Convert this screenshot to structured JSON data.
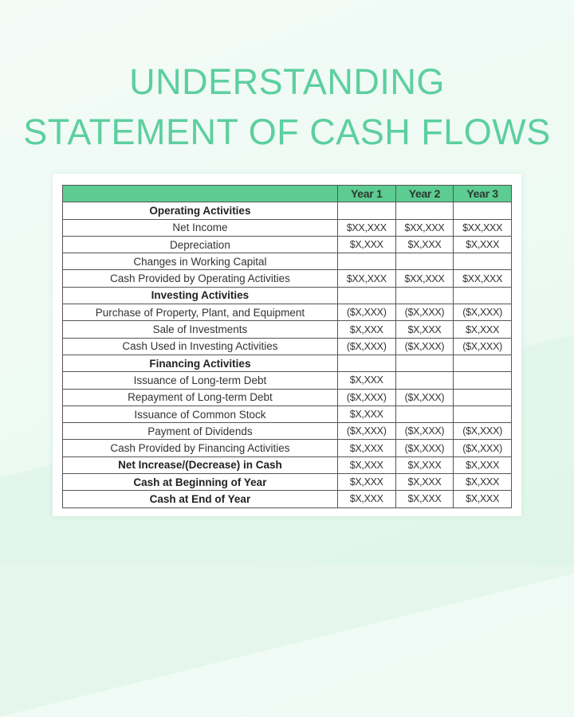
{
  "title": {
    "line1": "UNDERSTANDING",
    "line2": "STATEMENT OF CASH FLOWS"
  },
  "colors": {
    "accent": "#5dcf9f",
    "header_fill": "#5ccc92"
  },
  "table": {
    "headers": [
      "",
      "Year 1",
      "Year 2",
      "Year 3"
    ],
    "rows": [
      {
        "label": "Operating Activities",
        "bold": true,
        "values": [
          "",
          "",
          ""
        ]
      },
      {
        "label": "Net Income",
        "bold": false,
        "values": [
          "$XX,XXX",
          "$XX,XXX",
          "$XX,XXX"
        ]
      },
      {
        "label": "Depreciation",
        "bold": false,
        "values": [
          "$X,XXX",
          "$X,XXX",
          "$X,XXX"
        ]
      },
      {
        "label": "Changes in Working Capital",
        "bold": false,
        "values": [
          "",
          "",
          ""
        ]
      },
      {
        "label": "Cash Provided by Operating Activities",
        "bold": false,
        "values": [
          "$XX,XXX",
          "$XX,XXX",
          "$XX,XXX"
        ]
      },
      {
        "label": "Investing Activities",
        "bold": true,
        "values": [
          "",
          "",
          ""
        ]
      },
      {
        "label": "Purchase of Property, Plant, and Equipment",
        "bold": false,
        "values": [
          "($X,XXX)",
          "($X,XXX)",
          "($X,XXX)"
        ]
      },
      {
        "label": "Sale of Investments",
        "bold": false,
        "values": [
          "$X,XXX",
          "$X,XXX",
          "$X,XXX"
        ]
      },
      {
        "label": "Cash Used in Investing Activities",
        "bold": false,
        "values": [
          "($X,XXX)",
          "($X,XXX)",
          "($X,XXX)"
        ]
      },
      {
        "label": "Financing Activities",
        "bold": true,
        "values": [
          "",
          "",
          ""
        ]
      },
      {
        "label": "Issuance of Long-term Debt",
        "bold": false,
        "values": [
          "$X,XXX",
          "",
          ""
        ]
      },
      {
        "label": "Repayment of Long-term Debt",
        "bold": false,
        "values": [
          "($X,XXX)",
          "($X,XXX)",
          ""
        ]
      },
      {
        "label": "Issuance of Common Stock",
        "bold": false,
        "values": [
          "$X,XXX",
          "",
          ""
        ]
      },
      {
        "label": "Payment of Dividends",
        "bold": false,
        "values": [
          "($X,XXX)",
          "($X,XXX)",
          "($X,XXX)"
        ]
      },
      {
        "label": "Cash Provided by Financing Activities",
        "bold": false,
        "values": [
          "$X,XXX",
          "($X,XXX)",
          "($X,XXX)"
        ]
      },
      {
        "label": "Net Increase/(Decrease) in Cash",
        "bold": true,
        "values": [
          "$X,XXX",
          "$X,XXX",
          "$X,XXX"
        ]
      },
      {
        "label": "Cash at Beginning of Year",
        "bold": true,
        "values": [
          "$X,XXX",
          "$X,XXX",
          "$X,XXX"
        ]
      },
      {
        "label": "Cash at End of Year",
        "bold": true,
        "values": [
          "$X,XXX",
          "$X,XXX",
          "$X,XXX"
        ]
      }
    ]
  }
}
